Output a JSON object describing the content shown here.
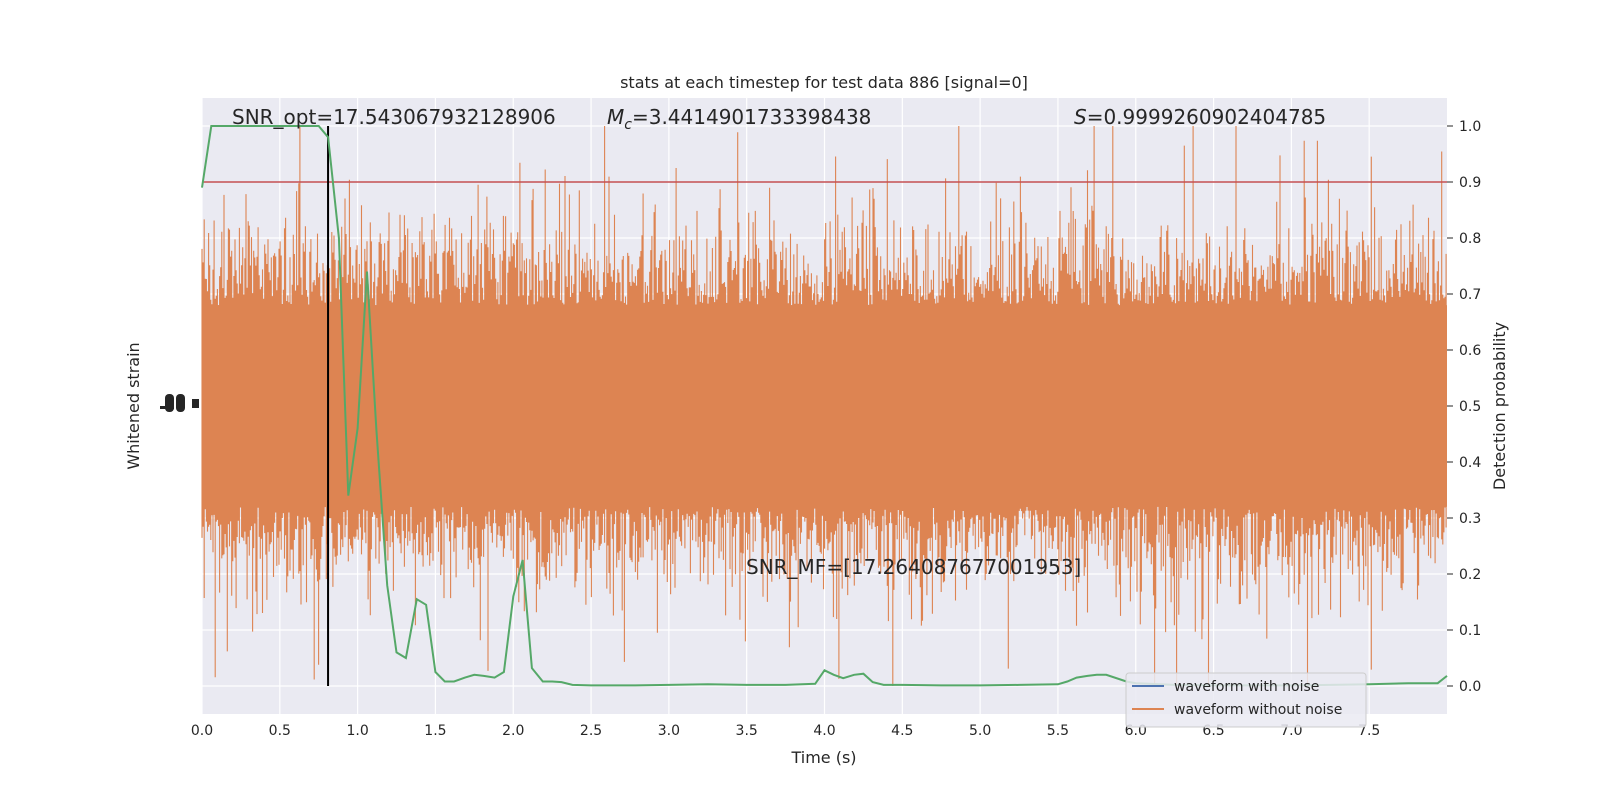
{
  "chart_data": {
    "type": "line",
    "title": "stats at each timestep for test data 886 [signal=0]",
    "xlabel": "Time (s)",
    "ylabel_left": "Whitened strain",
    "ylabel_right": "Detection probability",
    "xlim": [
      0.0,
      8.0
    ],
    "ylim_right": [
      -0.05,
      1.05
    ],
    "x_ticks": [
      "0.0",
      "0.5",
      "1.0",
      "1.5",
      "2.0",
      "2.5",
      "3.0",
      "3.5",
      "4.0",
      "4.5",
      "5.0",
      "5.5",
      "6.0",
      "6.5",
      "7.0",
      "7.5"
    ],
    "x_tick_values": [
      0.0,
      0.5,
      1.0,
      1.5,
      2.0,
      2.5,
      3.0,
      3.5,
      4.0,
      4.5,
      5.0,
      5.5,
      6.0,
      6.5,
      7.0,
      7.5
    ],
    "y_right_ticks": [
      "0.0",
      "0.1",
      "0.2",
      "0.3",
      "0.4",
      "0.5",
      "0.6",
      "0.7",
      "0.8",
      "0.9",
      "1.0"
    ],
    "y_right_tick_values": [
      0.0,
      0.1,
      0.2,
      0.3,
      0.4,
      0.5,
      0.6,
      0.7,
      0.8,
      0.9,
      1.0
    ],
    "threshold": 0.9,
    "vline_x": 0.81,
    "annotations": {
      "snr_opt": "SNR_opt=17.543067932128906",
      "mc_symbol": "M",
      "mc_sub": "c",
      "mc_value": "=3.4414901733398438",
      "s_symbol": "S",
      "s_value": "=0.9999260902404785",
      "snr_mf": "SNR_MF=[17.264087677001953]"
    },
    "series": [
      {
        "name": "waveform with noise",
        "color": "#4c72b0"
      },
      {
        "name": "waveform without noise",
        "color": "#dd8452"
      },
      {
        "color": "#55a868",
        "x": [
          0.0,
          0.06,
          0.12,
          0.19,
          0.25,
          0.31,
          0.38,
          0.44,
          0.5,
          0.56,
          0.62,
          0.69,
          0.75,
          0.81,
          0.88,
          0.94,
          1.0,
          1.06,
          1.12,
          1.19,
          1.25,
          1.31,
          1.38,
          1.44,
          1.5,
          1.56,
          1.62,
          1.69,
          1.75,
          1.81,
          1.88,
          1.94,
          2.0,
          2.06,
          2.12,
          2.19,
          2.25,
          2.31,
          2.38,
          2.5,
          2.75,
          3.0,
          3.25,
          3.5,
          3.75,
          3.94,
          4.0,
          4.06,
          4.12,
          4.19,
          4.25,
          4.31,
          4.38,
          4.5,
          4.75,
          5.0,
          5.25,
          5.5,
          5.56,
          5.62,
          5.69,
          5.75,
          5.81,
          5.94,
          6.0,
          6.25,
          6.5,
          6.75,
          7.0,
          7.25,
          7.5,
          7.75,
          7.94,
          8.0
        ],
        "y": [
          0.89,
          1.0,
          1.0,
          1.0,
          1.0,
          1.0,
          1.0,
          1.0,
          1.0,
          1.0,
          1.0,
          1.0,
          1.0,
          0.98,
          0.8,
          0.34,
          0.46,
          0.74,
          0.46,
          0.18,
          0.06,
          0.05,
          0.155,
          0.145,
          0.025,
          0.008,
          0.008,
          0.015,
          0.02,
          0.018,
          0.015,
          0.025,
          0.16,
          0.225,
          0.032,
          0.008,
          0.008,
          0.007,
          0.002,
          0.001,
          0.001,
          0.002,
          0.003,
          0.002,
          0.002,
          0.004,
          0.028,
          0.02,
          0.014,
          0.02,
          0.022,
          0.007,
          0.002,
          0.002,
          0.001,
          0.001,
          0.002,
          0.003,
          0.008,
          0.015,
          0.018,
          0.02,
          0.02,
          0.008,
          0.005,
          0.002,
          0.001,
          0.001,
          0.001,
          0.002,
          0.003,
          0.005,
          0.005,
          0.018
        ]
      }
    ],
    "strain": {
      "center": 0.5,
      "core_half_width": 0.18,
      "spike_extent": [
        0.0,
        1.0
      ]
    },
    "legend_position": "lower right"
  }
}
